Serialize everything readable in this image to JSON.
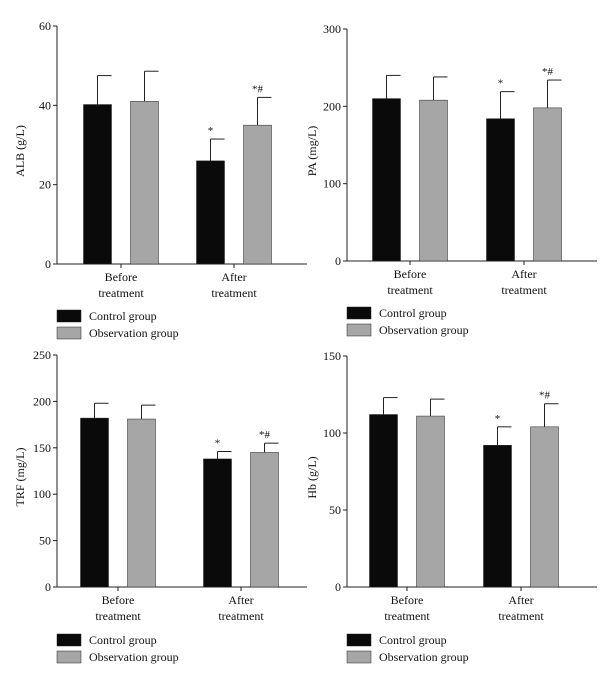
{
  "chart_data": [
    {
      "type": "bar",
      "ylabel": "ALB (g/L)",
      "ylim": [
        0,
        60
      ],
      "yticks": [
        0,
        20,
        40,
        60
      ],
      "categories": [
        [
          "Before",
          "treatment"
        ],
        [
          "After",
          "treatment"
        ]
      ],
      "series": [
        {
          "name": "Control group",
          "values": [
            40.2,
            26.0
          ],
          "errors": [
            7.3,
            5.5
          ],
          "marks": [
            "",
            "*"
          ]
        },
        {
          "name": "Observation group",
          "values": [
            41.0,
            35.0
          ],
          "errors": [
            7.6,
            7.0
          ],
          "marks": [
            "",
            "*#"
          ]
        }
      ],
      "legend": "bottom"
    },
    {
      "type": "bar",
      "ylabel": "PA (mg/L)",
      "ylim": [
        0,
        300
      ],
      "yticks": [
        0,
        100,
        200,
        300
      ],
      "categories": [
        [
          "Before",
          "treatment"
        ],
        [
          "After",
          "treatment"
        ]
      ],
      "series": [
        {
          "name": "Control group",
          "values": [
            210,
            184
          ],
          "errors": [
            30,
            35
          ],
          "marks": [
            "",
            "*"
          ]
        },
        {
          "name": "Observation group",
          "values": [
            208,
            198
          ],
          "errors": [
            30,
            36
          ],
          "marks": [
            "",
            "*#"
          ]
        }
      ],
      "legend": "bottom"
    },
    {
      "type": "bar",
      "ylabel": "TRF (mg/L)",
      "ylim": [
        0,
        250
      ],
      "yticks": [
        0,
        50,
        100,
        150,
        200,
        250
      ],
      "categories": [
        [
          "Before",
          "treatment"
        ],
        [
          "After",
          "treatment"
        ]
      ],
      "series": [
        {
          "name": "Control group",
          "values": [
            182,
            138
          ],
          "errors": [
            16,
            8
          ],
          "marks": [
            "",
            "*"
          ]
        },
        {
          "name": "Observation group",
          "values": [
            181,
            145
          ],
          "errors": [
            15,
            10
          ],
          "marks": [
            "",
            "*#"
          ]
        }
      ],
      "legend": "bottom"
    },
    {
      "type": "bar",
      "ylabel": "Hb (g/L)",
      "ylim": [
        0,
        150
      ],
      "yticks": [
        0,
        50,
        100,
        150
      ],
      "categories": [
        [
          "Before",
          "treatment"
        ],
        [
          "After",
          "treatment"
        ]
      ],
      "series": [
        {
          "name": "Control group",
          "values": [
            112,
            92
          ],
          "errors": [
            11,
            12
          ],
          "marks": [
            "",
            "*"
          ]
        },
        {
          "name": "Observation group",
          "values": [
            111,
            104
          ],
          "errors": [
            11,
            15
          ],
          "marks": [
            "",
            "*#"
          ]
        }
      ],
      "legend": "bottom"
    }
  ],
  "colors": {
    "Control group": "#0a0a0a",
    "Observation group": "#a6a6a6"
  }
}
